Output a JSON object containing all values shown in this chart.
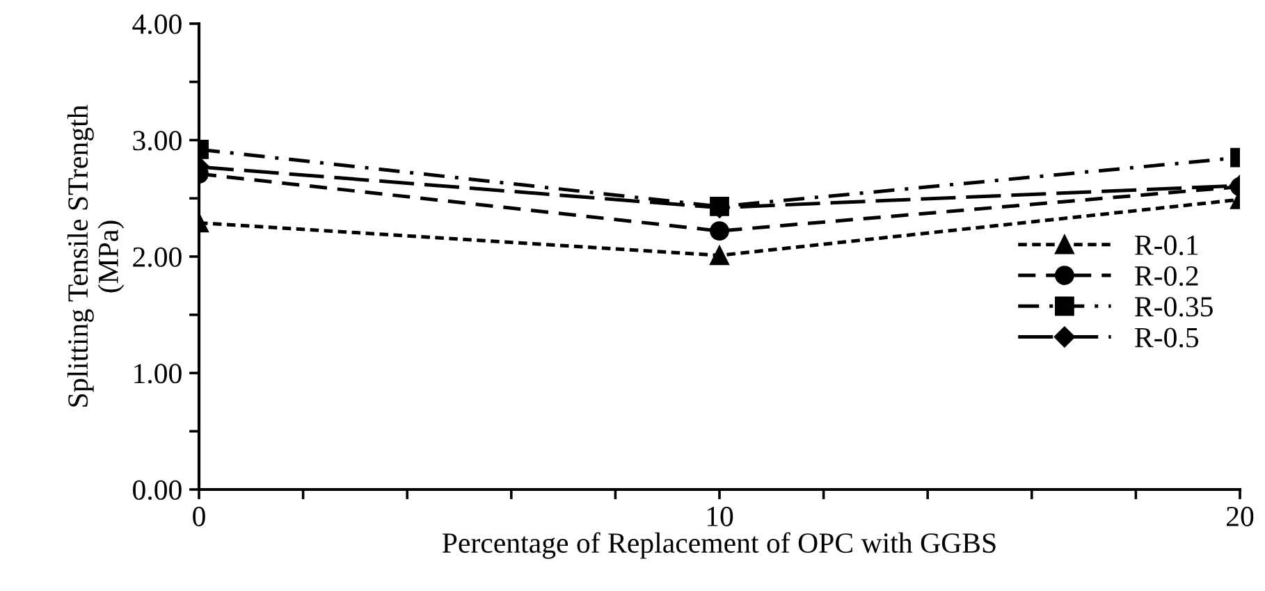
{
  "chart_data": {
    "type": "line",
    "xlabel": "Percentage of Replacement of OPC with GGBS",
    "ylabel": "Splitting Tensile STrength\n(MPa)",
    "x": [
      0,
      10,
      20
    ],
    "xlim": [
      0,
      20
    ],
    "xticks": [
      0,
      {
        "value": 2,
        "label": null
      },
      {
        "value": 4,
        "label": null
      },
      {
        "value": 6,
        "label": null
      },
      {
        "value": 8,
        "label": null
      },
      10,
      {
        "value": 12,
        "label": null
      },
      {
        "value": 14,
        "label": null
      },
      {
        "value": 16,
        "label": null
      },
      {
        "value": 18,
        "label": null
      },
      20
    ],
    "ylim": [
      0,
      4
    ],
    "yticks": [
      {
        "value": 0,
        "label": "0.00"
      },
      {
        "value": 0.5,
        "label": null
      },
      {
        "value": 1,
        "label": "1.00"
      },
      {
        "value": 1.5,
        "label": null
      },
      {
        "value": 2,
        "label": "2.00"
      },
      {
        "value": 2.5,
        "label": null
      },
      {
        "value": 3,
        "label": "3.00"
      },
      {
        "value": 3.5,
        "label": null
      },
      {
        "value": 4,
        "label": "4.00"
      }
    ],
    "grid": false,
    "legend": "right",
    "series": [
      {
        "name": "R-0.1",
        "color": "#000000",
        "marker": "triangle",
        "line_style": "dotted",
        "values": [
          2.29,
          2.01,
          2.49
        ]
      },
      {
        "name": "R-0.2",
        "color": "#000000",
        "marker": "circle",
        "line_style": "dashed",
        "values": [
          2.71,
          2.22,
          2.6
        ]
      },
      {
        "name": "R-0.35",
        "color": "#000000",
        "marker": "square",
        "line_style": "dashdot",
        "values": [
          2.92,
          2.43,
          2.85
        ]
      },
      {
        "name": "R-0.5",
        "color": "#000000",
        "marker": "diamond",
        "line_style": "longdash",
        "values": [
          2.77,
          2.42,
          2.61
        ]
      }
    ]
  }
}
